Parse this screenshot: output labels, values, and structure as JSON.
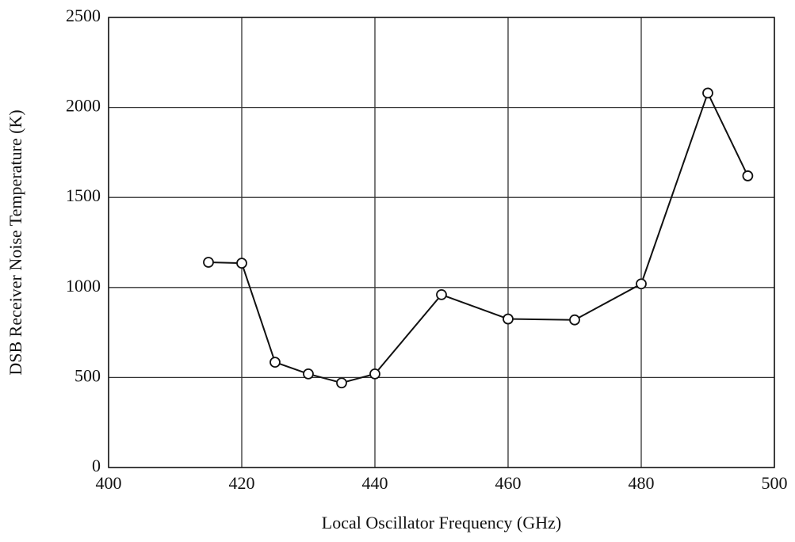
{
  "chart_data": {
    "type": "line",
    "x_label": "Local Oscillator Frequency (GHz)",
    "y_label": "DSB Receiver Noise Temperature (K)",
    "x": [
      415,
      420,
      425,
      430,
      435,
      440,
      450,
      460,
      470,
      480,
      490,
      496
    ],
    "series": [
      {
        "color": "#111111",
        "values": [
          1140,
          1135,
          585,
          520,
          470,
          520,
          960,
          825,
          820,
          1020,
          2080,
          1620
        ]
      }
    ],
    "xlim": [
      400,
      500
    ],
    "xticks": [
      400,
      420,
      440,
      460,
      480,
      500
    ],
    "ylim": [
      0,
      2500
    ],
    "yticks": [
      0,
      500,
      1000,
      1500,
      2000,
      2500
    ],
    "grid": true,
    "markers": "open-circle"
  }
}
